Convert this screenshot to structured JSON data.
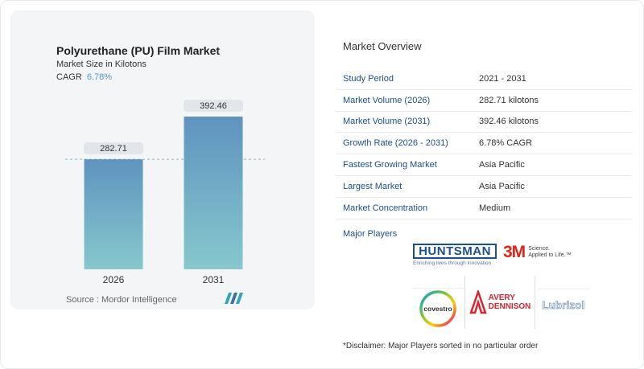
{
  "header": {
    "title": "Polyurethane (PU) Film Market",
    "subtitle": "Market Size in Kilotons",
    "cagr_label": "CAGR",
    "cagr_value": "6.78%"
  },
  "chart_data": {
    "type": "bar",
    "categories": [
      "2026",
      "2031"
    ],
    "values": [
      282.71,
      392.46
    ],
    "data_labels": [
      "282.71",
      "392.46"
    ],
    "title": "Polyurethane (PU) Film Market",
    "xlabel": "",
    "ylabel": "",
    "ylim": [
      0,
      392.46
    ],
    "grid": false,
    "colors": {
      "bar_top": "#5f93bf",
      "bar_bottom": "#86c8cc",
      "label_bg": "#e2e6ea",
      "reference_line": "#8fb6cf"
    }
  },
  "source": "Source :  Mordor Intelligence",
  "overview": {
    "title": "Market Overview",
    "rows": [
      {
        "label": "Study Period",
        "value": "2021 - 2031"
      },
      {
        "label": "Market Volume (2026)",
        "value": "282.71 kilotons"
      },
      {
        "label": "Market Volume (2031)",
        "value": "392.46 kilotons"
      },
      {
        "label": "Growth Rate (2026 - 2031)",
        "value": "6.78% CAGR"
      },
      {
        "label": "Fastest Growing Market",
        "value": "Asia Pacific"
      },
      {
        "label": "Largest Market",
        "value": "Asia Pacific"
      },
      {
        "label": "Market Concentration",
        "value": "Medium"
      }
    ],
    "players_label": "Major Players"
  },
  "players": {
    "huntsman_name": "HUNTSMAN",
    "huntsman_tagline": "Enriching lives through innovation",
    "threem_name": "3M",
    "threem_tagline_1": "Science.",
    "threem_tagline_2": "Applied to Life.™",
    "covestro_name": "covestro",
    "avery_name_1": "AVERY",
    "avery_name_2": "DENNISON",
    "lubrizol_name": "Lubrizol"
  },
  "disclaimer": "*Disclaimer: Major Players sorted in no particular order"
}
